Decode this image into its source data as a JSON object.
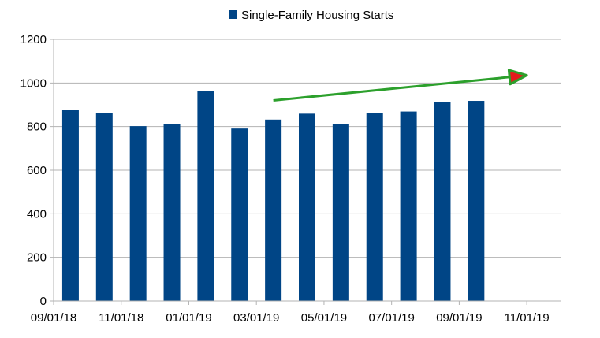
{
  "chart_data": {
    "type": "bar",
    "title": "",
    "xlabel": "",
    "ylabel": "",
    "ylim": [
      0,
      1200
    ],
    "yticks": [
      0,
      200,
      400,
      600,
      800,
      1000,
      1200
    ],
    "xticks": [
      "09/01/18",
      "11/01/18",
      "01/01/19",
      "03/01/19",
      "05/01/19",
      "07/01/19",
      "09/01/19",
      "11/01/19"
    ],
    "categories": [
      "09/01/18",
      "10/01/18",
      "11/01/18",
      "12/01/18",
      "01/01/19",
      "02/01/19",
      "03/01/19",
      "04/01/19",
      "05/01/19",
      "06/01/19",
      "07/01/19",
      "08/01/19",
      "09/01/19",
      "10/01/19",
      "11/01/19"
    ],
    "series": [
      {
        "name": "Single-Family Housing Starts",
        "color": "#004586",
        "values": [
          878,
          863,
          802,
          813,
          962,
          791,
          832,
          859,
          813,
          862,
          869,
          913,
          918,
          null,
          null
        ]
      }
    ],
    "grid": true,
    "legend_position": "top-center",
    "annotations": [
      {
        "type": "trend-arrow",
        "color": "#2ca02c",
        "head_color": "#e31a1c",
        "from": {
          "x": "03/01/19",
          "y": 920
        },
        "to": {
          "x": "11/01/19",
          "y": 1035
        }
      }
    ]
  }
}
